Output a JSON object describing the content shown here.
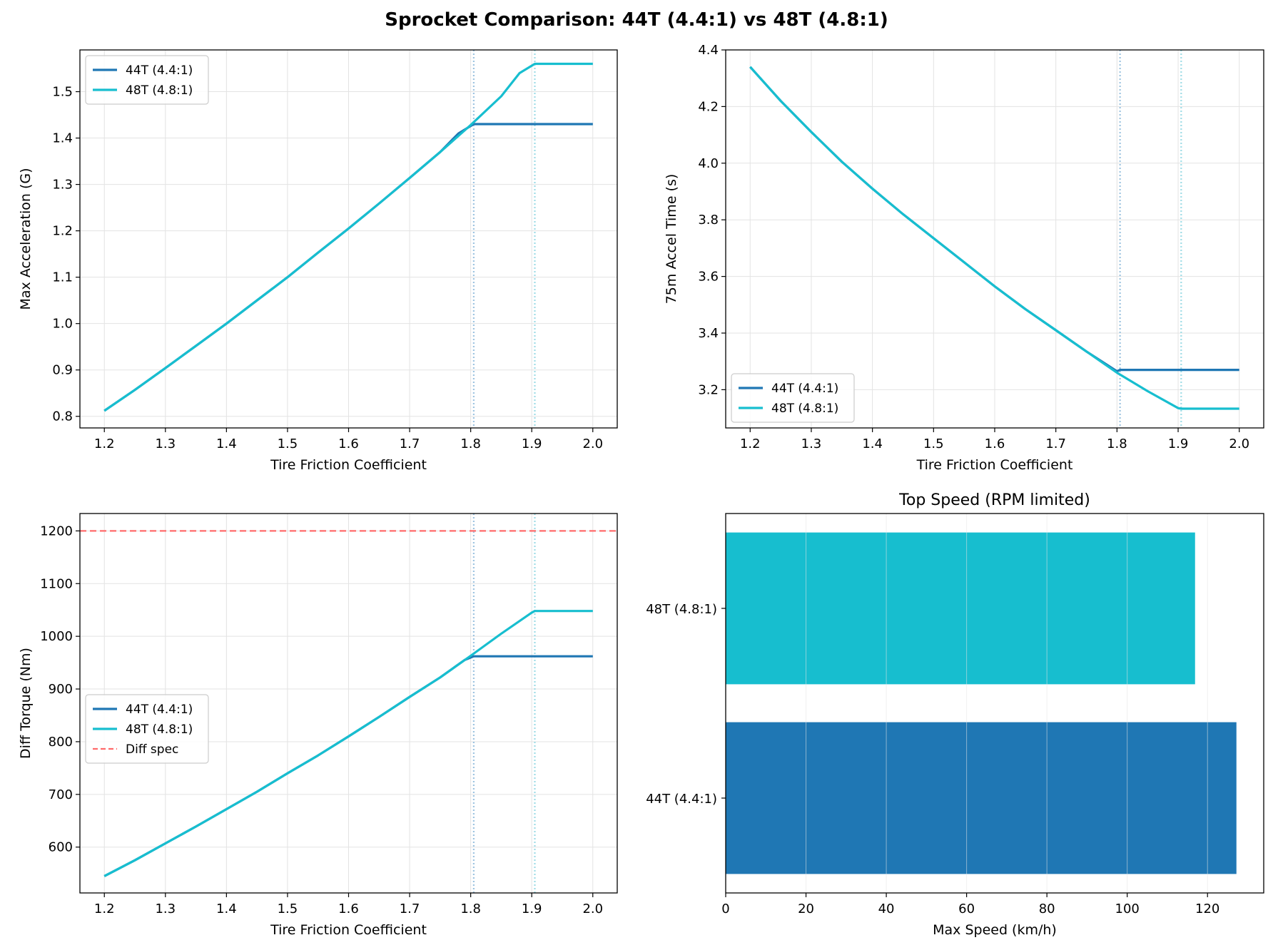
{
  "figure": {
    "suptitle": "Sprocket Comparison: 44T (4.4:1) vs 48T (4.8:1)"
  },
  "colors": {
    "s44": "#1f77b4",
    "s48": "#17becf",
    "diff_spec": "#ff6b6b",
    "grid": "#e3e3e3",
    "vline44": "#9ec4e0",
    "vline48": "#9fdce6"
  },
  "chart_data": [
    {
      "type": "line",
      "title": "",
      "xlabel": "Tire Friction Coefficient",
      "ylabel": "Max Acceleration (G)",
      "xlim": [
        1.16,
        2.04
      ],
      "ylim": [
        0.775,
        1.59
      ],
      "xticks": [
        "1.2",
        "1.3",
        "1.4",
        "1.5",
        "1.6",
        "1.7",
        "1.8",
        "1.9",
        "2.0"
      ],
      "yticks": [
        "0.8",
        "0.9",
        "1.0",
        "1.1",
        "1.2",
        "1.3",
        "1.4",
        "1.5"
      ],
      "grid": true,
      "legend_position": "upper-left",
      "legend": [
        "44T (4.4:1)",
        "48T (4.8:1)"
      ],
      "vlines": [
        1.805,
        1.905
      ],
      "series": [
        {
          "name": "44T (4.4:1)",
          "x": [
            1.2,
            1.25,
            1.3,
            1.35,
            1.4,
            1.45,
            1.5,
            1.55,
            1.6,
            1.65,
            1.7,
            1.75,
            1.78,
            1.805,
            1.85,
            1.9,
            1.95,
            2.0
          ],
          "y": [
            0.812,
            0.857,
            0.904,
            0.952,
            1.0,
            1.05,
            1.1,
            1.153,
            1.205,
            1.259,
            1.314,
            1.37,
            1.41,
            1.43,
            1.43,
            1.43,
            1.43,
            1.43
          ]
        },
        {
          "name": "48T (4.8:1)",
          "x": [
            1.2,
            1.25,
            1.3,
            1.35,
            1.4,
            1.45,
            1.5,
            1.55,
            1.6,
            1.65,
            1.7,
            1.75,
            1.8,
            1.85,
            1.88,
            1.905,
            1.95,
            2.0
          ],
          "y": [
            0.812,
            0.857,
            0.904,
            0.952,
            1.0,
            1.05,
            1.1,
            1.153,
            1.205,
            1.259,
            1.314,
            1.37,
            1.428,
            1.49,
            1.54,
            1.56,
            1.56,
            1.56
          ]
        }
      ]
    },
    {
      "type": "line",
      "title": "",
      "xlabel": "Tire Friction Coefficient",
      "ylabel": "75m Accel Time (s)",
      "xlim": [
        1.16,
        2.04
      ],
      "ylim": [
        3.065,
        4.4
      ],
      "xticks": [
        "1.2",
        "1.3",
        "1.4",
        "1.5",
        "1.6",
        "1.7",
        "1.8",
        "1.9",
        "2.0"
      ],
      "yticks": [
        "3.2",
        "3.4",
        "3.6",
        "3.8",
        "4.0",
        "4.2",
        "4.4"
      ],
      "grid": true,
      "legend_position": "lower-left",
      "legend": [
        "44T (4.4:1)",
        "48T (4.8:1)"
      ],
      "vlines": [
        1.805,
        1.905
      ],
      "series": [
        {
          "name": "44T (4.4:1)",
          "x": [
            1.2,
            1.25,
            1.3,
            1.35,
            1.4,
            1.45,
            1.5,
            1.55,
            1.6,
            1.65,
            1.7,
            1.75,
            1.8,
            1.805,
            1.85,
            1.9,
            1.95,
            2.0
          ],
          "y": [
            4.34,
            4.22,
            4.11,
            4.005,
            3.91,
            3.82,
            3.735,
            3.65,
            3.565,
            3.485,
            3.41,
            3.335,
            3.265,
            3.27,
            3.27,
            3.27,
            3.27,
            3.27
          ]
        },
        {
          "name": "48T (4.8:1)",
          "x": [
            1.2,
            1.25,
            1.3,
            1.35,
            1.4,
            1.45,
            1.5,
            1.55,
            1.6,
            1.65,
            1.7,
            1.75,
            1.8,
            1.85,
            1.9,
            1.905,
            1.95,
            2.0
          ],
          "y": [
            4.34,
            4.22,
            4.11,
            4.005,
            3.91,
            3.82,
            3.735,
            3.65,
            3.565,
            3.485,
            3.41,
            3.335,
            3.26,
            3.195,
            3.135,
            3.133,
            3.133,
            3.133
          ]
        }
      ]
    },
    {
      "type": "line",
      "title": "",
      "xlabel": "Tire Friction Coefficient",
      "ylabel": "Diff Torque (Nm)",
      "xlim": [
        1.16,
        2.04
      ],
      "ylim": [
        513,
        1233
      ],
      "xticks": [
        "1.2",
        "1.3",
        "1.4",
        "1.5",
        "1.6",
        "1.7",
        "1.8",
        "1.9",
        "2.0"
      ],
      "yticks": [
        "600",
        "700",
        "800",
        "900",
        "1000",
        "1100",
        "1200"
      ],
      "grid": true,
      "legend_position": "center-left",
      "legend": [
        "44T (4.4:1)",
        "48T (4.8:1)",
        "Diff spec"
      ],
      "vlines": [
        1.805,
        1.905
      ],
      "hline": {
        "name": "Diff spec",
        "y": 1200
      },
      "series": [
        {
          "name": "44T (4.4:1)",
          "x": [
            1.2,
            1.25,
            1.3,
            1.35,
            1.4,
            1.45,
            1.5,
            1.55,
            1.6,
            1.65,
            1.7,
            1.75,
            1.79,
            1.805,
            1.85,
            1.9,
            1.95,
            2.0
          ],
          "y": [
            545,
            575,
            607,
            639,
            672,
            705,
            740,
            774,
            810,
            847,
            885,
            922,
            955,
            962,
            962,
            962,
            962,
            962
          ]
        },
        {
          "name": "48T (4.8:1)",
          "x": [
            1.2,
            1.25,
            1.3,
            1.35,
            1.4,
            1.45,
            1.5,
            1.55,
            1.6,
            1.65,
            1.7,
            1.75,
            1.8,
            1.85,
            1.9,
            1.905,
            1.95,
            2.0
          ],
          "y": [
            545,
            575,
            607,
            639,
            672,
            705,
            740,
            774,
            810,
            847,
            885,
            922,
            963,
            1005,
            1045,
            1048,
            1048,
            1048
          ]
        }
      ]
    },
    {
      "type": "bar",
      "orientation": "horizontal",
      "title": "Top Speed (RPM limited)",
      "xlabel": "Max Speed (km/h)",
      "ylabel": "",
      "xlim": [
        0,
        134
      ],
      "xticks": [
        "0",
        "20",
        "40",
        "60",
        "80",
        "100",
        "120"
      ],
      "grid": true,
      "categories": [
        "44T (4.4:1)",
        "48T (4.8:1)"
      ],
      "values": [
        127.2,
        116.9
      ]
    }
  ]
}
